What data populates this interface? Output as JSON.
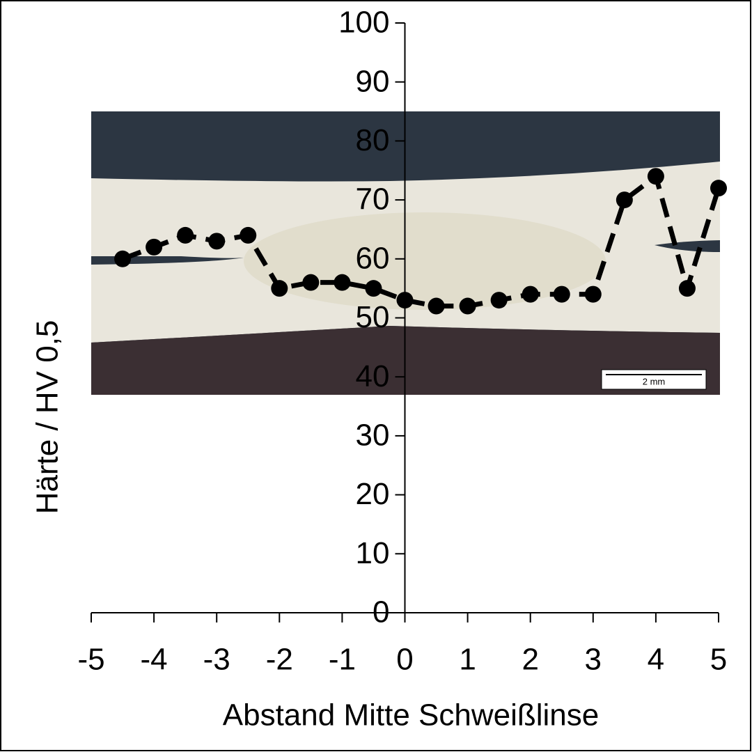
{
  "chart_data": {
    "type": "line",
    "xlabel": "Abstand Mitte Schweißlinse",
    "ylabel": "Härte / HV 0,5",
    "annotation": "2 mm",
    "x": [
      -4.5,
      -4,
      -3.5,
      -3,
      -2.5,
      -2,
      -1.5,
      -1,
      -0.5,
      0,
      0.5,
      1,
      1.5,
      2,
      2.5,
      3,
      3.5,
      4,
      4.5,
      5
    ],
    "values": [
      60,
      62,
      64,
      63,
      64,
      55,
      56,
      56,
      55,
      53,
      52,
      52,
      53,
      54,
      54,
      54,
      70,
      74,
      55,
      72
    ],
    "color": "#000000",
    "line_style": "dashed",
    "xlim": [
      -5,
      5
    ],
    "xticks": [
      -5,
      -4,
      -3,
      -2,
      -1,
      0,
      1,
      2,
      3,
      4,
      5
    ],
    "ylim": [
      0,
      100
    ],
    "yticks": [
      0,
      10,
      20,
      30,
      40,
      50,
      60,
      70,
      80,
      90,
      100
    ]
  }
}
